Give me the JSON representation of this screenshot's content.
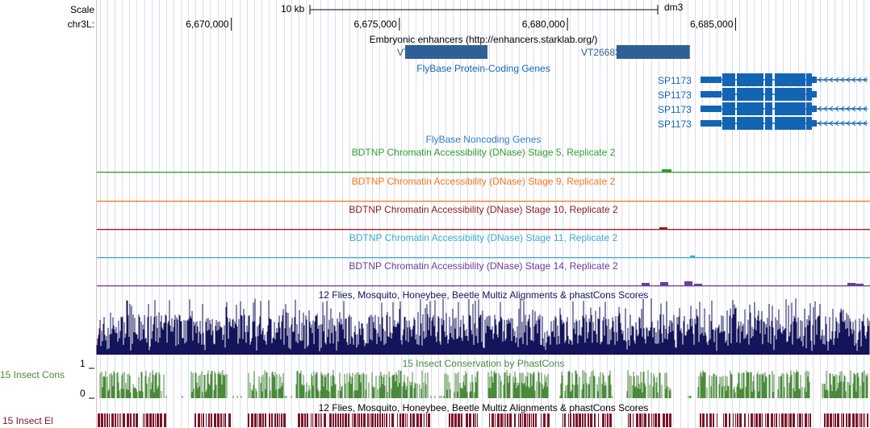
{
  "ruler": {
    "scale_label": "Scale",
    "chrom_label": "chr3L:",
    "scale_bar_label": "10 kb",
    "assembly": "dm3",
    "ticks": [
      {
        "label": "6,670,000",
        "pos": 6670000
      },
      {
        "label": "6,675,000",
        "pos": 6675000
      },
      {
        "label": "6,680,000",
        "pos": 6680000
      },
      {
        "label": "6,685,000",
        "pos": 6685000
      }
    ]
  },
  "tracks": {
    "enhancers": {
      "title": "Embryonic enhancers (http://enhancers.starklab.org/)",
      "color": "#2f5f97",
      "items": [
        {
          "name": "VT26680",
          "start": 6675170,
          "end": 6677620
        },
        {
          "name": "VT26683",
          "start": 6681460,
          "end": 6683640
        }
      ]
    },
    "protein_genes": {
      "title": "FlyBase Protein-Coding Genes",
      "color": "#1464b4",
      "transcripts": [
        {
          "name": "SP1173"
        },
        {
          "name": "SP1173"
        },
        {
          "name": "SP1173"
        },
        {
          "name": "SP1173"
        }
      ]
    },
    "noncoding": {
      "title": "FlyBase Noncoding Genes",
      "color": "#3080c8"
    },
    "dnase": [
      {
        "title": "BDTNP Chromatin Accessibility (DNase) Stage 5, Replicate 2",
        "color": "#2ca02c"
      },
      {
        "title": "BDTNP Chromatin Accessibility (DNase) Stage 9, Replicate 2",
        "color": "#f07820"
      },
      {
        "title": "BDTNP Chromatin Accessibility (DNase) Stage 10, Replicate 2",
        "color": "#8c1c1c"
      },
      {
        "title": "BDTNP Chromatin Accessibility (DNase) Stage 11, Replicate 2",
        "color": "#3caad2"
      },
      {
        "title": "BDTNP Chromatin Accessibility (DNase) Stage 14, Replicate 2",
        "color": "#6a3d9a"
      }
    ],
    "multiz": {
      "title": "12 Flies, Mosquito, Honeybee, Beetle Multiz Alignments & phastCons Scores",
      "color": "#14145a"
    },
    "phastcons": {
      "title": "15 Insect Conservation by PhastCons",
      "side_label": "15 Insect Cons",
      "axis_max": "1",
      "axis_min": "0",
      "color": "#4a8a3a"
    },
    "multiz2": {
      "title": "12 Flies, Mosquito, Honeybee, Beetle Multiz Alignments & phastCons Scores"
    },
    "elements": {
      "side_label": "15 Insect El",
      "color": "#7a1428"
    }
  }
}
